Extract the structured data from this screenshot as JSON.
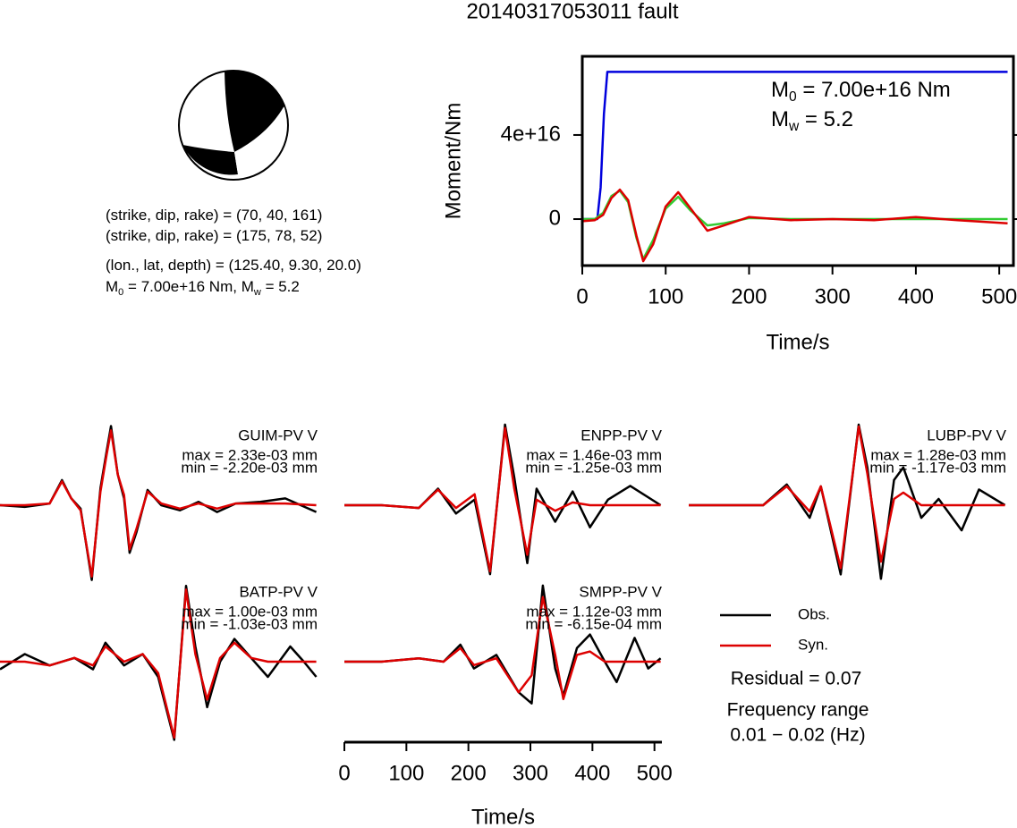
{
  "title": "20140317053011 fault",
  "mechanism_text": [
    [
      {
        "text": "(strike, dip, rake) = (70, 40, 161)"
      }
    ],
    [
      {
        "text": "(strike, dip, rake) = (175, 78, 52)"
      }
    ],
    [
      {
        "text": "(lon., lat, depth) = (125.40, 9.30, 20.0)"
      }
    ],
    [
      {
        "text": "M"
      },
      {
        "text": "0",
        "sub": true
      },
      {
        "text": " = 7.00e+16 Nm, M"
      },
      {
        "text": "w",
        "sub": true
      },
      {
        "text": " = 5.2"
      }
    ]
  ],
  "chart_data": [
    {
      "type": "line",
      "xlabel": "Time/s",
      "ylabel": "Moment/Nm",
      "xlim": [
        0,
        517
      ],
      "xticks": [
        0,
        100,
        200,
        300,
        400,
        500
      ],
      "ylim": [
        -2.21e+16,
        7.74e+16
      ],
      "yticks": [
        {
          "value": 0,
          "label": "0"
        },
        {
          "value": 4e+16,
          "label": "4e+16"
        }
      ],
      "annotations": [
        [
          {
            "text": "M"
          },
          {
            "text": "0",
            "sub": true
          },
          {
            "text": " = 7.00e+16 Nm"
          }
        ],
        [
          {
            "text": "M"
          },
          {
            "text": "w",
            "sub": true
          },
          {
            "text": " = 5.2"
          }
        ]
      ],
      "series": [
        {
          "color": "#0000dd",
          "x": [
            0,
            18,
            22,
            26,
            30,
            510
          ],
          "values": [
            0,
            0,
            1.5e+16,
            5e+16,
            7e+16,
            7e+16
          ]
        },
        {
          "color": "#33cc33",
          "x": [
            0,
            15,
            25,
            35,
            45,
            55,
            65,
            73,
            85,
            100,
            115,
            130,
            150,
            170,
            200,
            250,
            300,
            350,
            400,
            450,
            510
          ],
          "values": [
            0,
            0,
            3000000000000000.0,
            1.1e+16,
            1.35e+16,
            8000000000000000.0,
            -9000000000000000.0,
            -1.9e+16,
            -1e+16,
            5000000000000000.0,
            1.06e+16,
            4000000000000000.0,
            -3000000000000000.0,
            -2000000000000000.0,
            500000000000000.0,
            0,
            0,
            0,
            0,
            0,
            0
          ]
        },
        {
          "color": "#dd0000",
          "x": [
            0,
            15,
            25,
            35,
            45,
            55,
            65,
            73,
            85,
            100,
            115,
            130,
            150,
            170,
            200,
            250,
            300,
            350,
            400,
            450,
            510
          ],
          "values": [
            -1000000000000000.0,
            -500000000000000.0,
            2000000000000000.0,
            1e+16,
            1.4e+16,
            9000000000000000.0,
            -8000000000000000.0,
            -2e+16,
            -1.2e+16,
            6000000000000000.0,
            1.28e+16,
            5000000000000000.0,
            -5500000000000000.0,
            -3000000000000000.0,
            1000000000000000.0,
            -500000000000000.0,
            0,
            -500000000000000.0,
            1000000000000000.0,
            -500000000000000.0,
            -2000000000000000.0
          ]
        }
      ]
    },
    {
      "type": "waveform",
      "xlabel": "Time/s",
      "xlim": [
        0,
        512
      ],
      "xticks": [
        0,
        100,
        200,
        300,
        400,
        500
      ],
      "series_styles": [
        {
          "name": "Obs.",
          "color": "#000000"
        },
        {
          "name": "Syn.",
          "color": "#dd0000"
        }
      ],
      "residual": "Residual = 0.07",
      "frequency": [
        "Frequency range",
        "0.01 − 0.02 (Hz)"
      ],
      "panels": [
        {
          "title": "GUIM-PV V",
          "max_label": "max = 2.33e-03 mm",
          "min_label": "min = -2.20e-03 mm",
          "ylim": [
            -0.0025,
            0.0025
          ],
          "x": [
            0,
            40,
            80,
            100,
            115,
            130,
            148,
            162,
            172,
            179,
            190,
            200,
            209,
            220,
            238,
            260,
            290,
            320,
            350,
            380,
            420,
            460,
            510
          ],
          "obs": [
            0,
            -5e-05,
            5e-05,
            0.00074,
            0.0002,
            -0.0001,
            -0.0022,
            0.0005,
            0.0016,
            0.00233,
            0.0009,
            0.0002,
            -0.0014,
            -0.0008,
            0.00045,
            0,
            -0.00015,
            0.0001,
            -0.0002,
            5e-05,
            0.0001,
            0.0002,
            -0.0002
          ],
          "syn": [
            0,
            0,
            5e-05,
            0.0007,
            0.0002,
            -0.00015,
            -0.0021,
            0.0004,
            0.0015,
            0.0022,
            0.0009,
            0.0003,
            -0.0013,
            -0.0007,
            0.0004,
            5e-05,
            -0.0001,
            5e-05,
            -0.0001,
            5e-05,
            5e-05,
            5e-05,
            0
          ]
        },
        {
          "title": "ENPP-PV V",
          "max_label": "max = 1.46e-03 mm",
          "min_label": "min = -1.25e-03 mm",
          "ylim": [
            -0.00154,
            0.00154
          ],
          "x": [
            0,
            60,
            120,
            151,
            180,
            210,
            235,
            259,
            274,
            295,
            310,
            340,
            368,
            396,
            425,
            461,
            510
          ],
          "obs": [
            0,
            0,
            -5e-05,
            0.0003,
            -0.00015,
            0.0001,
            -0.00125,
            0.00146,
            0.0005,
            -0.00105,
            0.0003,
            -0.0003,
            0.00025,
            -0.0004,
            0.0001,
            0.00035,
            0
          ],
          "syn": [
            0,
            0,
            -5e-05,
            0.00028,
            -5e-05,
            0.0002,
            -0.0012,
            0.0014,
            0.0003,
            -0.0009,
            0.0001,
            -0.0001,
            5e-05,
            0,
            0,
            0,
            0
          ]
        },
        {
          "title": "LUBP-PV V",
          "max_label": "max = 1.28e-03 mm",
          "min_label": "min = -1.17e-03 mm",
          "ylim": [
            -0.00135,
            0.00135
          ],
          "x": [
            0,
            60,
            120,
            158,
            195,
            213,
            245,
            274,
            288,
            310,
            331,
            346,
            375,
            403,
            440,
            468,
            510
          ],
          "obs": [
            0,
            0,
            0,
            0.00033,
            -0.0002,
            0.0003,
            -0.0011,
            0.00128,
            0.0006,
            -0.00117,
            0.0004,
            0.0006,
            -0.0002,
            0.0001,
            -0.0004,
            0.00025,
            0
          ],
          "syn": [
            0,
            0,
            0,
            0.0003,
            -0.0001,
            0.0003,
            -0.001,
            0.00125,
            0.0005,
            -0.0009,
            0.0001,
            0.0002,
            0,
            0,
            0,
            0,
            0
          ]
        },
        {
          "title": "BATP-PV V",
          "max_label": "max = 1.00e-03 mm",
          "min_label": "min = -1.03e-03 mm",
          "ylim": [
            -0.00112,
            0.00112
          ],
          "x": [
            0,
            40,
            80,
            120,
            150,
            170,
            200,
            230,
            255,
            281,
            300,
            315,
            334,
            355,
            378,
            405,
            432,
            468,
            490,
            510
          ],
          "obs": [
            -0.0001,
            0.0001,
            -5e-05,
            5e-05,
            -0.0001,
            0.00025,
            -5e-05,
            0.0001,
            -0.0002,
            -0.00103,
            0.001,
            0.0002,
            -0.0006,
            0,
            0.0003,
            5e-05,
            -0.0002,
            0.0002,
            0,
            -0.0002
          ],
          "syn": [
            0,
            0,
            -5e-05,
            5e-05,
            -5e-05,
            0.0002,
            0,
            0.0001,
            -0.00015,
            -0.001,
            0.00095,
            0.0001,
            -0.0005,
            5e-05,
            0.00025,
            5e-05,
            0,
            0,
            0,
            0
          ]
        },
        {
          "title": "SMPP-PV V",
          "max_label": "max = 1.12e-03 mm",
          "min_label": "min = -6.15e-04 mm",
          "ylim": [
            -0.00125,
            0.00125
          ],
          "x": [
            0,
            60,
            120,
            160,
            187,
            209,
            245,
            281,
            302,
            320,
            340,
            353,
            375,
            396,
            420,
            439,
            468,
            490,
            510
          ],
          "obs": [
            0,
            0,
            5e-05,
            0,
            0.00025,
            -0.0001,
            0.0001,
            -0.00045,
            -0.000615,
            0.00112,
            -0.0001,
            -0.0005,
            0.0002,
            0.0004,
            0,
            -0.0003,
            0.00035,
            -0.0001,
            5e-05
          ],
          "syn": [
            0,
            0,
            5e-05,
            0,
            0.0002,
            -5e-05,
            5e-05,
            -0.00045,
            -0.0002,
            0.00095,
            0.0001,
            -0.00055,
            0.0001,
            0.00015,
            0,
            0,
            0,
            0,
            0
          ]
        }
      ]
    }
  ]
}
